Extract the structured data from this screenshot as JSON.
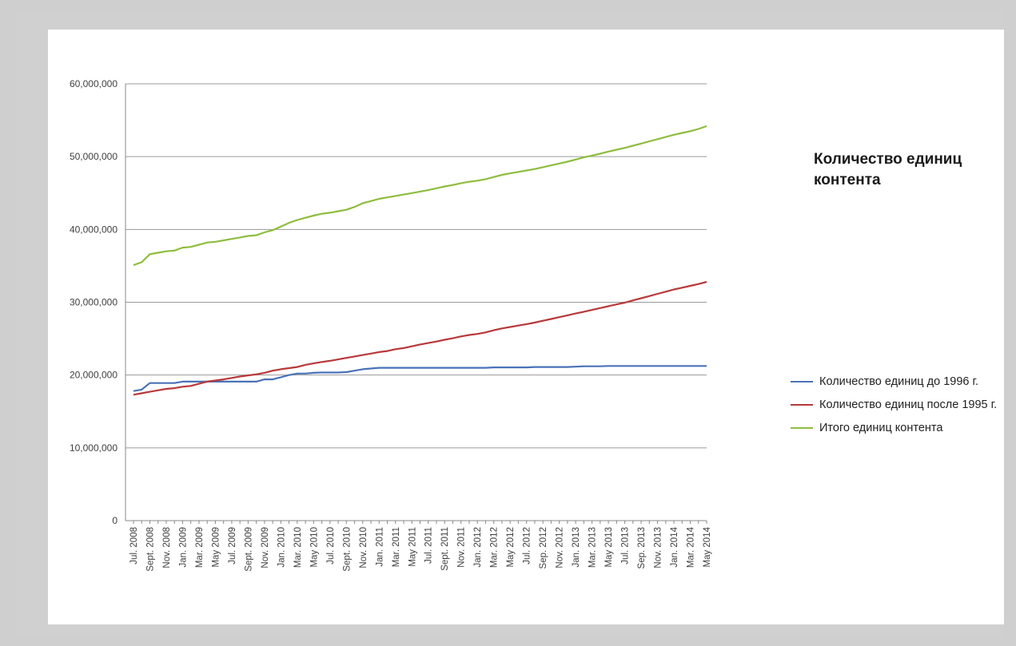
{
  "chart_data": {
    "type": "line",
    "title": "Количество единиц контента",
    "xlabel": "",
    "ylabel": "",
    "ylim": [
      0,
      60000000
    ],
    "yticks": [
      0,
      10000000,
      20000000,
      30000000,
      40000000,
      50000000,
      60000000
    ],
    "ytick_labels": [
      "0",
      "10,000,000",
      "20,000,000",
      "30,000,000",
      "40,000,000",
      "50,000,000",
      "60,000,000"
    ],
    "grid": true,
    "legend_position": "right",
    "x": [
      "Jul. 2008",
      "Aug. 2008",
      "Sept. 2008",
      "Oct. 2008",
      "Nov. 2008",
      "Dec. 2008",
      "Jan. 2009",
      "Feb. 2009",
      "Mar. 2009",
      "Apr. 2009",
      "May 2009",
      "Jun. 2009",
      "Jul. 2009",
      "Aug. 2009",
      "Sept. 2009",
      "Oct. 2009",
      "Nov. 2009",
      "Dec. 2009",
      "Jan. 2010",
      "Feb. 2010",
      "Mar. 2010",
      "Apr. 2010",
      "May 2010",
      "Jun. 2010",
      "Jul. 2010",
      "Aug. 2010",
      "Sept. 2010",
      "Oct. 2010",
      "Nov. 2010",
      "Dec. 2010",
      "Jan. 2011",
      "Feb. 2011",
      "Mar. 2011",
      "Apr. 2011",
      "May 2011",
      "Jun. 2011",
      "Jul. 2011",
      "Aug. 2011",
      "Sept. 2011",
      "Oct. 2011",
      "Nov. 2011",
      "Dec. 2011",
      "Jan. 2012",
      "Feb. 2012",
      "Mar. 2012",
      "Apr. 2012",
      "May 2012",
      "Jun. 2012",
      "Jul. 2012",
      "Aug. 2012",
      "Sep. 2012",
      "Oct. 2012",
      "Nov. 2012",
      "Dec. 2012",
      "Jan. 2013",
      "Feb. 2013",
      "Mar. 2013",
      "Apr. 2013",
      "May 2013",
      "Jun. 2013",
      "Jul. 2013",
      "Aug. 2013",
      "Sep. 2013",
      "Oct. 2013",
      "Nov. 2013",
      "Dec. 2013",
      "Jan. 2014",
      "Feb. 2014",
      "Mar. 2014",
      "Apr. 2014",
      "May 2014"
    ],
    "x_labels_shown": [
      "Jul. 2008",
      "Sept. 2008",
      "Nov. 2008",
      "Jan. 2009",
      "Mar. 2009",
      "May 2009",
      "Jul. 2009",
      "Sept. 2009",
      "Nov. 2009",
      "Jan. 2010",
      "Mar. 2010",
      "May 2010",
      "Jul. 2010",
      "Sept. 2010",
      "Nov. 2010",
      "Jan. 2011",
      "Mar. 2011",
      "May 2011",
      "Jul. 2011",
      "Sept. 2011",
      "Nov. 2011",
      "Jan. 2012",
      "Mar. 2012",
      "May 2012",
      "Jul. 2012",
      "Sep. 2012",
      "Nov. 2012",
      "Jan. 2013",
      "Mar. 2013",
      "May 2013",
      "Jul. 2013",
      "Sep. 2013",
      "Nov. 2013",
      "Jan. 2014",
      "Mar. 2014",
      "May 2014"
    ],
    "series": [
      {
        "name": "Количество единиц до 1996 г.",
        "color": "#4a72b8",
        "values": [
          17800000,
          18000000,
          18900000,
          18900000,
          18900000,
          18900000,
          19100000,
          19100000,
          19100000,
          19100000,
          19100000,
          19100000,
          19100000,
          19100000,
          19100000,
          19100000,
          19400000,
          19400000,
          19700000,
          20000000,
          20200000,
          20200000,
          20300000,
          20350000,
          20350000,
          20350000,
          20400000,
          20600000,
          20800000,
          20900000,
          21000000,
          21000000,
          21000000,
          21000000,
          21000000,
          21000000,
          21000000,
          21000000,
          21000000,
          21000000,
          21000000,
          21000000,
          21000000,
          21000000,
          21050000,
          21050000,
          21050000,
          21050000,
          21050000,
          21100000,
          21100000,
          21100000,
          21100000,
          21100000,
          21150000,
          21200000,
          21200000,
          21200000,
          21250000,
          21250000,
          21250000,
          21250000,
          21250000,
          21250000,
          21250000,
          21250000,
          21250000,
          21250000,
          21250000,
          21250000,
          21250000
        ]
      },
      {
        "name": "Количество единиц после 1995 г.",
        "color": "#b8383a",
        "values": [
          17300000,
          17500000,
          17700000,
          17900000,
          18100000,
          18200000,
          18400000,
          18500000,
          18800000,
          19100000,
          19250000,
          19400000,
          19600000,
          19800000,
          19950000,
          20100000,
          20300000,
          20600000,
          20800000,
          20950000,
          21100000,
          21400000,
          21600000,
          21800000,
          21950000,
          22150000,
          22350000,
          22550000,
          22750000,
          22950000,
          23150000,
          23300000,
          23550000,
          23700000,
          23950000,
          24200000,
          24400000,
          24600000,
          24850000,
          25050000,
          25300000,
          25500000,
          25650000,
          25850000,
          26150000,
          26400000,
          26600000,
          26800000,
          27000000,
          27200000,
          27450000,
          27700000,
          27950000,
          28200000,
          28450000,
          28700000,
          28950000,
          29200000,
          29450000,
          29700000,
          29950000,
          30250000,
          30550000,
          30850000,
          31150000,
          31450000,
          31750000,
          32000000,
          32250000,
          32500000,
          32800000
        ]
      },
      {
        "name": "Итого единиц контента",
        "color": "#8ebd3e",
        "values": [
          35100000,
          35500000,
          36600000,
          36800000,
          37000000,
          37100000,
          37500000,
          37600000,
          37900000,
          38200000,
          38300000,
          38500000,
          38700000,
          38900000,
          39100000,
          39200000,
          39600000,
          39900000,
          40400000,
          40900000,
          41300000,
          41600000,
          41900000,
          42150000,
          42300000,
          42500000,
          42700000,
          43100000,
          43600000,
          43900000,
          44200000,
          44400000,
          44600000,
          44800000,
          45000000,
          45200000,
          45400000,
          45650000,
          45900000,
          46100000,
          46350000,
          46550000,
          46700000,
          46900000,
          47200000,
          47500000,
          47700000,
          47900000,
          48100000,
          48300000,
          48550000,
          48800000,
          49050000,
          49300000,
          49600000,
          49900000,
          50150000,
          50400000,
          50700000,
          50950000,
          51200000,
          51500000,
          51800000,
          52100000,
          52400000,
          52700000,
          53000000,
          53250000,
          53500000,
          53800000,
          54200000
        ]
      }
    ]
  }
}
